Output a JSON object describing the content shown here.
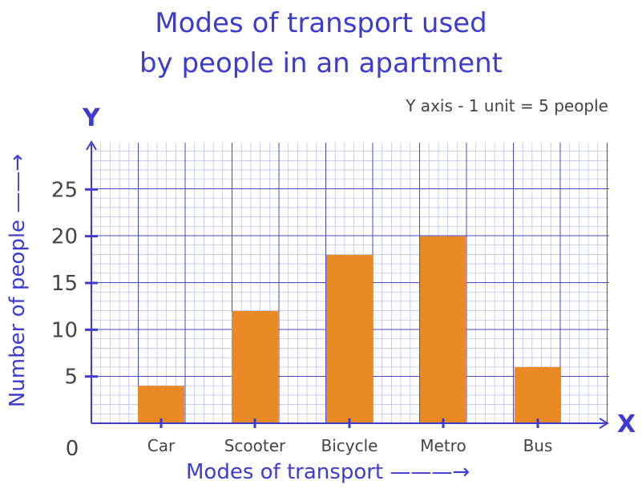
{
  "chart_data": {
    "type": "bar",
    "title_lines": [
      "Modes of transport used",
      "by people in an apartment"
    ],
    "note": "Y axis - 1 unit = 5 people",
    "xlabel": "Modes of transport",
    "ylabel": "Number of people",
    "x_axis_letter": "X",
    "y_axis_letter": "Y",
    "origin_label": "0",
    "categories": [
      "Car",
      "Scooter",
      "Bicycle",
      "Metro",
      "Bus"
    ],
    "values": [
      4,
      12,
      18,
      20,
      6
    ],
    "yticks": [
      5,
      10,
      15,
      20,
      25
    ],
    "ylim": [
      0,
      30
    ],
    "grid": true,
    "bar_color": "#ea8a25",
    "axis_color": "#3c3ccf",
    "grid_color": "#b9b9ee"
  }
}
